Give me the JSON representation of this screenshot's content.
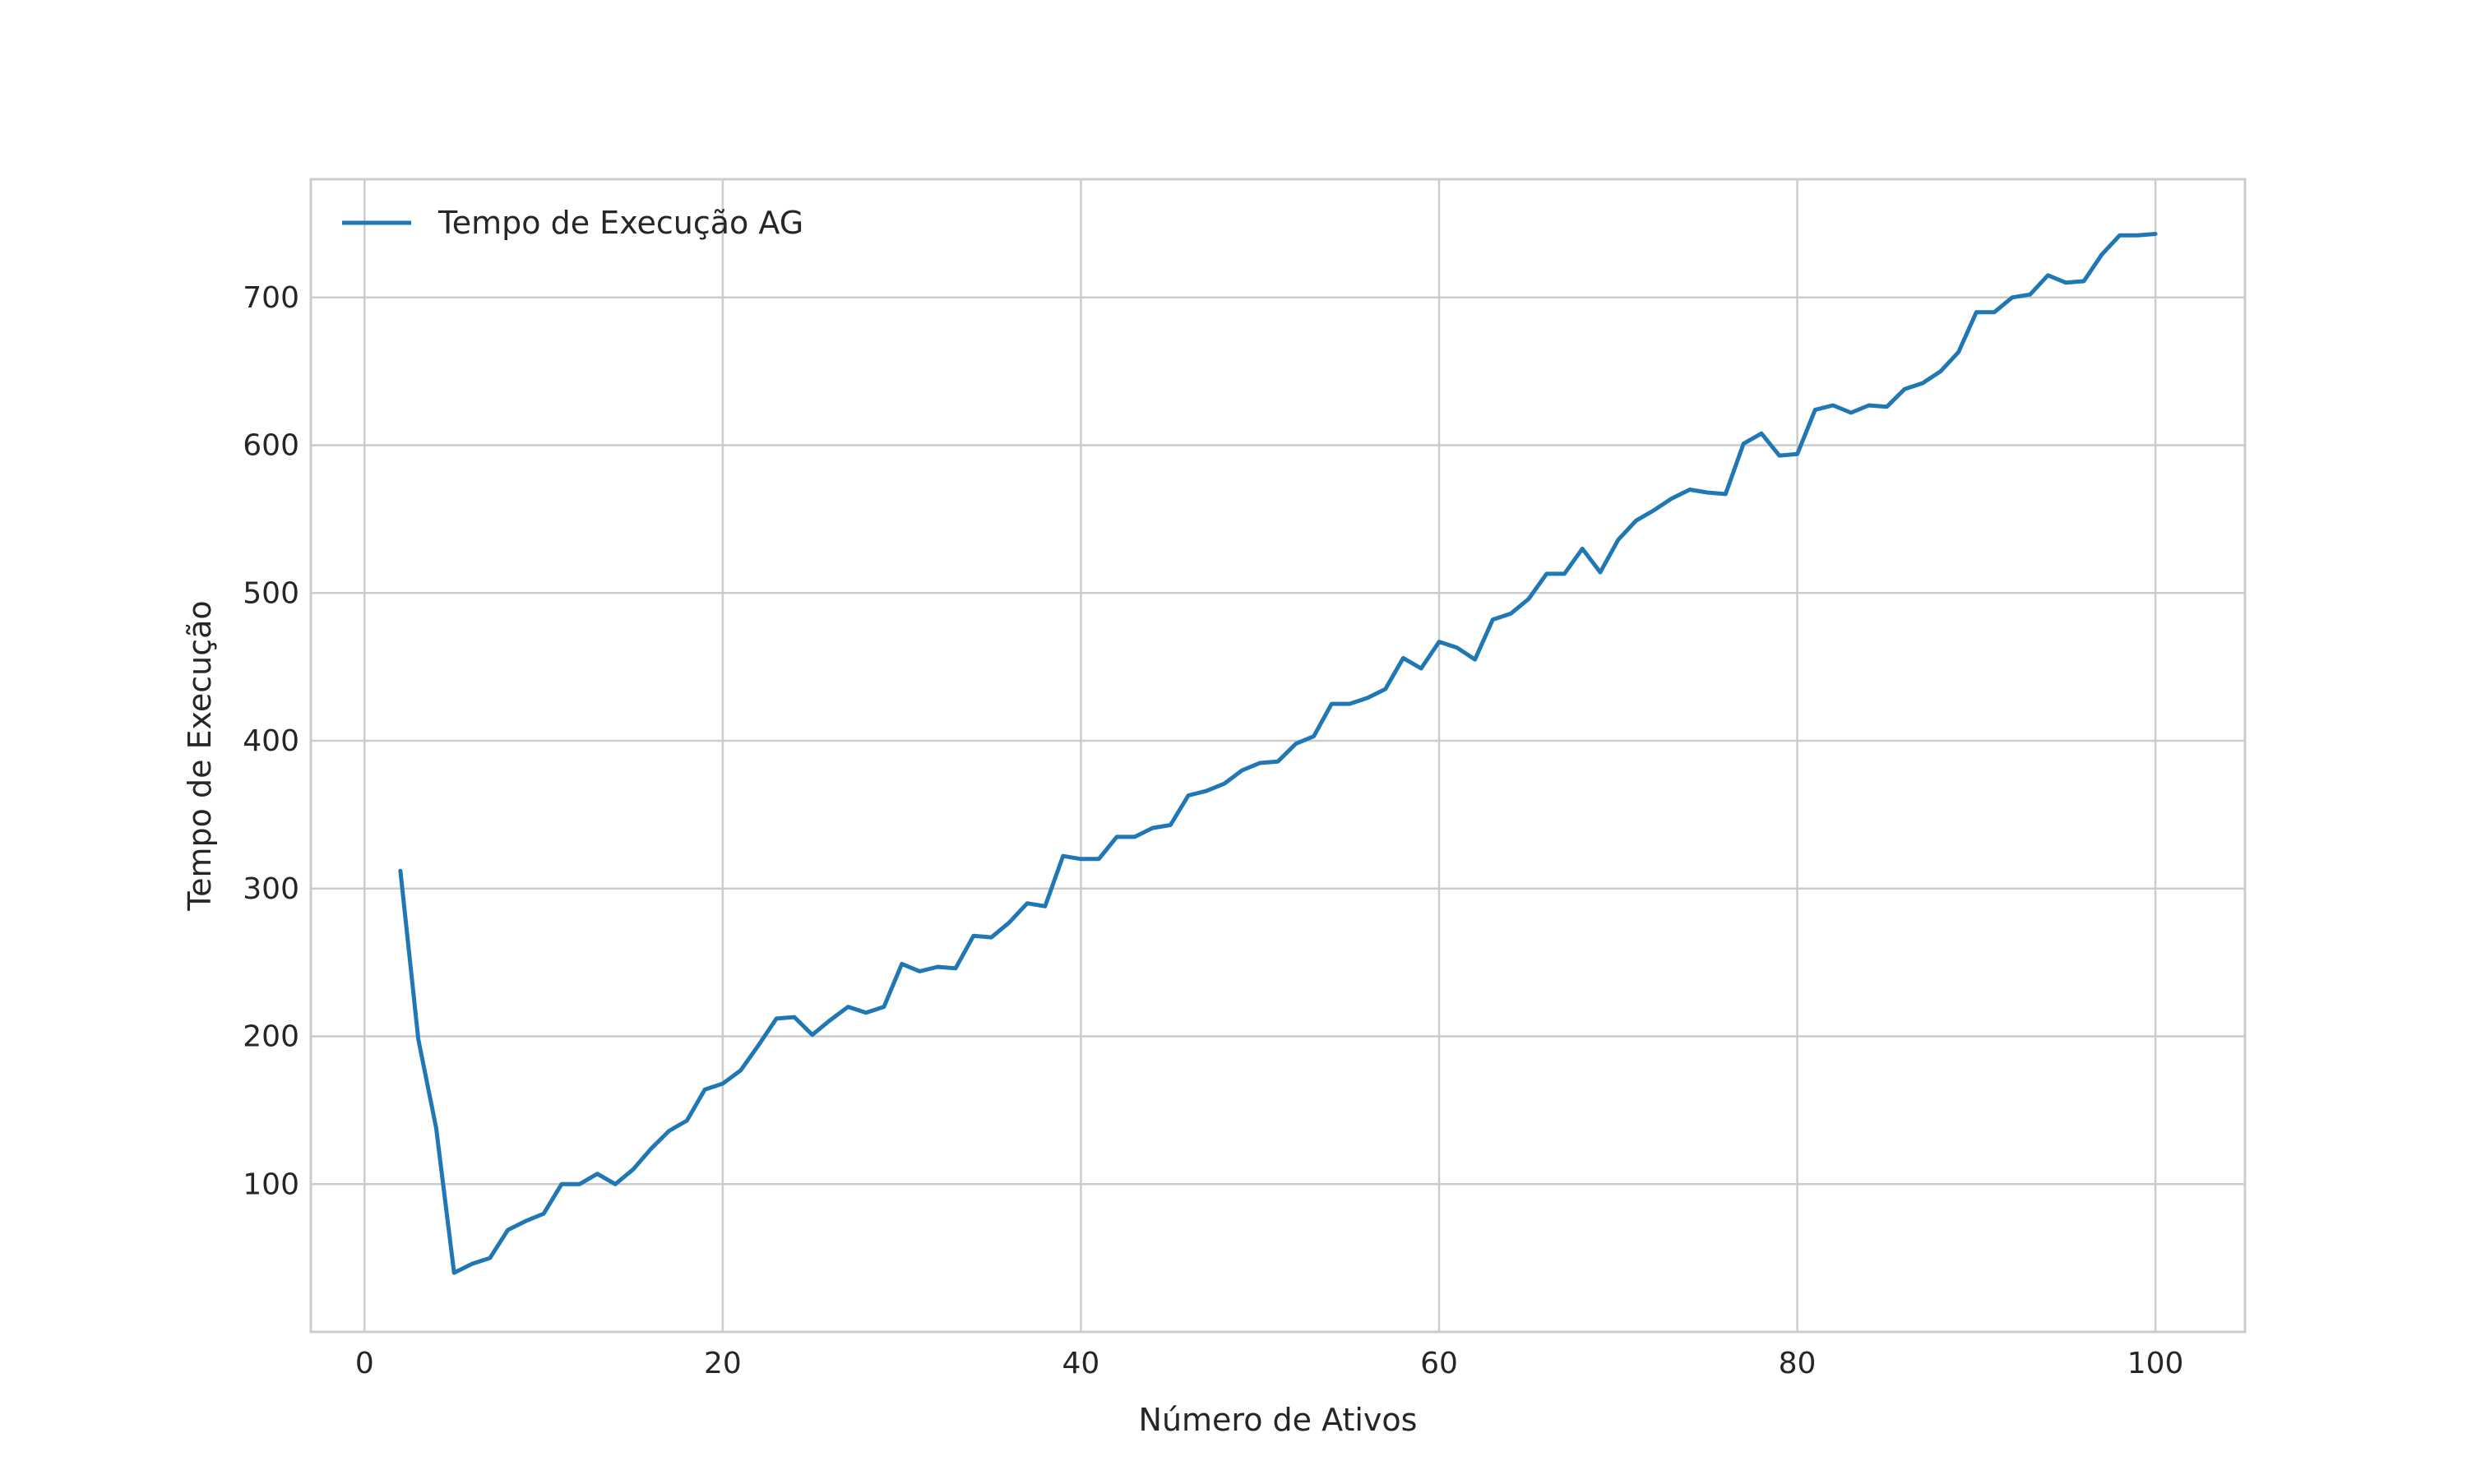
{
  "chart_data": {
    "type": "line",
    "title": "",
    "xlabel": "Número de Ativos",
    "ylabel": "Tempo de Execução",
    "xlim": [
      -3,
      105
    ],
    "ylim": [
      0,
      780
    ],
    "grid": true,
    "legend_position": "top-left",
    "x_ticks": [
      0,
      20,
      40,
      60,
      80,
      100
    ],
    "y_ticks": [
      100,
      200,
      300,
      400,
      500,
      600,
      700
    ],
    "x_tick_labels": [
      "0",
      "20",
      "40",
      "60",
      "80",
      "100"
    ],
    "y_tick_labels": [
      "100",
      "200",
      "300",
      "400",
      "500",
      "600",
      "700"
    ],
    "series": [
      {
        "name": "Tempo de Execução AG",
        "color": "#1f77b4",
        "x": [
          2,
          3,
          4,
          5,
          6,
          7,
          8,
          9,
          10,
          11,
          12,
          13,
          14,
          15,
          16,
          17,
          18,
          19,
          20,
          21,
          22,
          23,
          24,
          25,
          26,
          27,
          28,
          29,
          30,
          31,
          32,
          33,
          34,
          35,
          36,
          37,
          38,
          39,
          40,
          41,
          42,
          43,
          44,
          45,
          46,
          47,
          48,
          49,
          50,
          51,
          52,
          53,
          54,
          55,
          56,
          57,
          58,
          59,
          60,
          61,
          62,
          63,
          64,
          65,
          66,
          67,
          68,
          69,
          70,
          71,
          72,
          73,
          74,
          75,
          76,
          77,
          78,
          79,
          80,
          81,
          82,
          83,
          84,
          85,
          86,
          87,
          88,
          89,
          90,
          91,
          92,
          93,
          94,
          95,
          96,
          97,
          98,
          99,
          100
        ],
        "y": [
          312,
          198,
          138,
          40,
          46,
          50,
          69,
          75,
          80,
          100,
          100,
          107,
          100,
          110,
          124,
          136,
          143,
          164,
          168,
          177,
          194,
          212,
          213,
          201,
          211,
          220,
          216,
          220,
          249,
          244,
          247,
          246,
          268,
          267,
          277,
          290,
          288,
          322,
          320,
          320,
          335,
          335,
          341,
          343,
          363,
          366,
          371,
          380,
          385,
          386,
          398,
          403,
          425,
          425,
          429,
          435,
          456,
          449,
          467,
          463,
          455,
          482,
          486,
          496,
          513,
          513,
          530,
          514,
          536,
          549,
          556,
          564,
          570,
          568,
          567,
          601,
          608,
          593,
          594,
          624,
          627,
          622,
          627,
          626,
          638,
          642,
          650,
          663,
          690,
          690,
          700,
          702,
          715,
          710,
          711,
          729,
          742,
          742,
          743
        ]
      }
    ]
  }
}
